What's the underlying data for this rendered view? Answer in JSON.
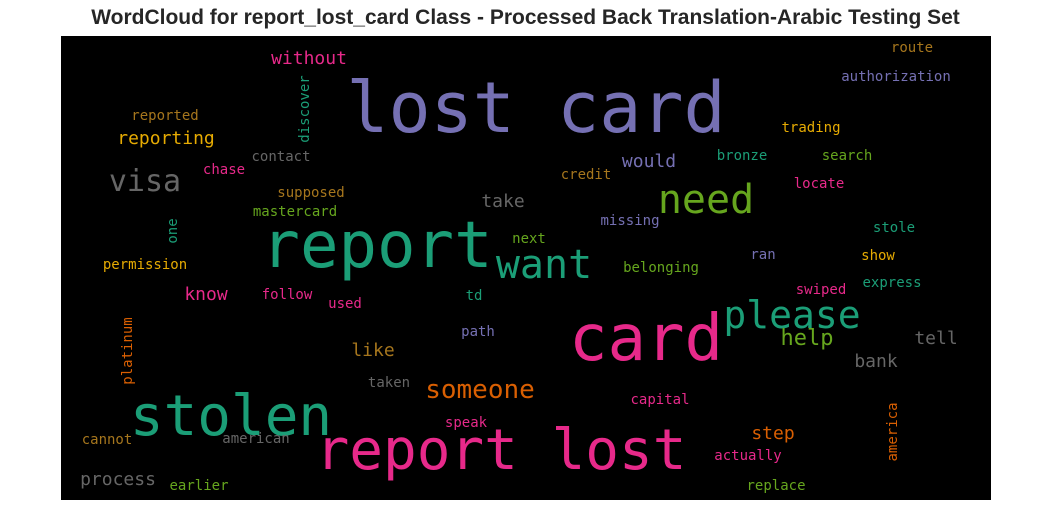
{
  "chart_data": {
    "type": "wordcloud",
    "title": "WordCloud for report_lost_card Class - Processed Back Translation-Arabic Testing Set",
    "background": "#000000",
    "words": [
      {
        "text": "lost card",
        "color": "#7570b3"
      },
      {
        "text": "report",
        "color": "#1b9e77"
      },
      {
        "text": "card",
        "color": "#e7298a"
      },
      {
        "text": "report lost",
        "color": "#e7298a"
      },
      {
        "text": "stolen",
        "color": "#1b9e77"
      },
      {
        "text": "need",
        "color": "#66a61e"
      },
      {
        "text": "want",
        "color": "#1b9e77"
      },
      {
        "text": "please",
        "color": "#1b9e77"
      },
      {
        "text": "visa",
        "color": "#666666"
      },
      {
        "text": "someone",
        "color": "#d95f02"
      },
      {
        "text": "help",
        "color": "#66a61e"
      },
      {
        "text": "reporting",
        "color": "#e6ab02"
      },
      {
        "text": "without",
        "color": "#e7298a"
      },
      {
        "text": "would",
        "color": "#7570b3"
      },
      {
        "text": "take",
        "color": "#666666"
      },
      {
        "text": "know",
        "color": "#e7298a"
      },
      {
        "text": "like",
        "color": "#a6761d"
      },
      {
        "text": "bank",
        "color": "#666666"
      },
      {
        "text": "tell",
        "color": "#666666"
      },
      {
        "text": "step",
        "color": "#d95f02"
      },
      {
        "text": "process",
        "color": "#666666"
      },
      {
        "text": "route",
        "color": "#a6761d"
      },
      {
        "text": "authorization",
        "color": "#7570b3"
      },
      {
        "text": "trading",
        "color": "#e6ab02"
      },
      {
        "text": "reported",
        "color": "#a6761d"
      },
      {
        "text": "contact",
        "color": "#666666"
      },
      {
        "text": "chase",
        "color": "#e7298a"
      },
      {
        "text": "credit",
        "color": "#a6761d"
      },
      {
        "text": "bronze",
        "color": "#1b9e77"
      },
      {
        "text": "search",
        "color": "#66a61e"
      },
      {
        "text": "locate",
        "color": "#e7298a"
      },
      {
        "text": "supposed",
        "color": "#a6761d"
      },
      {
        "text": "mastercard",
        "color": "#66a61e"
      },
      {
        "text": "missing",
        "color": "#7570b3"
      },
      {
        "text": "stole",
        "color": "#1b9e77"
      },
      {
        "text": "next",
        "color": "#66a61e"
      },
      {
        "text": "permission",
        "color": "#e6ab02"
      },
      {
        "text": "belonging",
        "color": "#66a61e"
      },
      {
        "text": "ran",
        "color": "#7570b3"
      },
      {
        "text": "show",
        "color": "#e6ab02"
      },
      {
        "text": "follow",
        "color": "#e7298a"
      },
      {
        "text": "td",
        "color": "#1b9e77"
      },
      {
        "text": "swiped",
        "color": "#e7298a"
      },
      {
        "text": "express",
        "color": "#1b9e77"
      },
      {
        "text": "used",
        "color": "#e7298a"
      },
      {
        "text": "path",
        "color": "#7570b3"
      },
      {
        "text": "taken",
        "color": "#666666"
      },
      {
        "text": "capital",
        "color": "#e7298a"
      },
      {
        "text": "speak",
        "color": "#e7298a"
      },
      {
        "text": "cannot",
        "color": "#a6761d"
      },
      {
        "text": "american",
        "color": "#666666"
      },
      {
        "text": "actually",
        "color": "#e7298a"
      },
      {
        "text": "earlier",
        "color": "#66a61e"
      },
      {
        "text": "replace",
        "color": "#66a61e"
      },
      {
        "text": "discover",
        "color": "#1b9e77"
      },
      {
        "text": "one",
        "color": "#1b9e77"
      },
      {
        "text": "platinum",
        "color": "#d95f02"
      },
      {
        "text": "america",
        "color": "#d95f02"
      }
    ]
  }
}
